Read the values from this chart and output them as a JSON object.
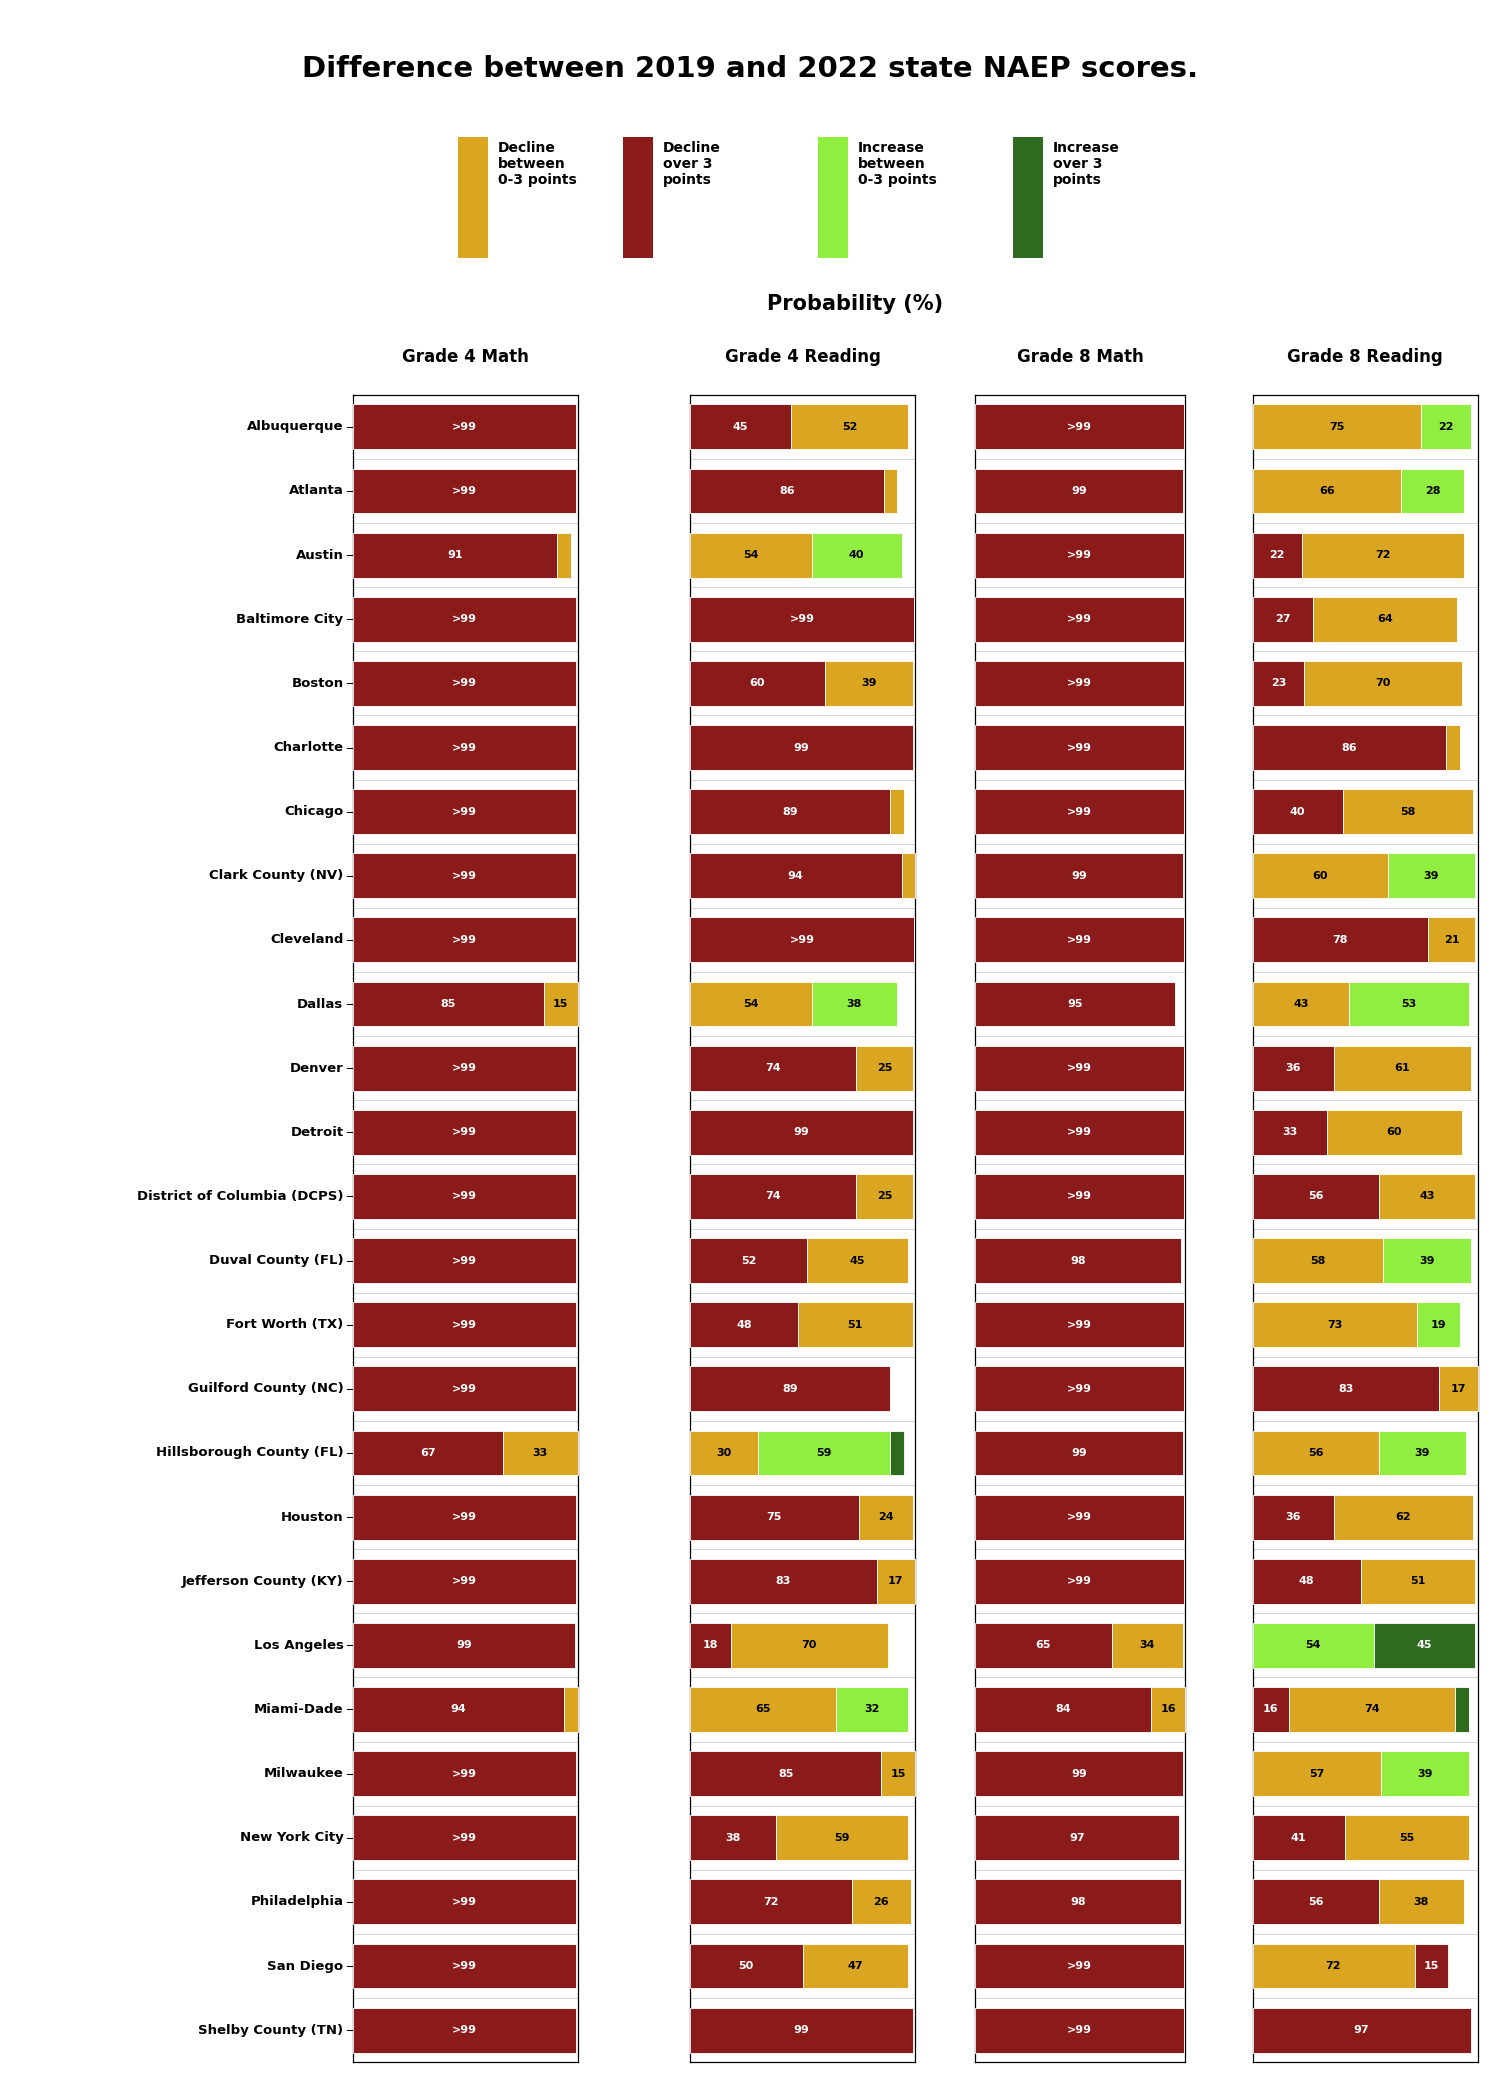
{
  "title": "Difference between 2019 and 2022 state NAEP scores.",
  "col_headers": [
    "Grade 4 Math",
    "Grade 4 Reading",
    "Grade 8 Math",
    "Grade 8 Reading"
  ],
  "cities": [
    "Albuquerque",
    "Atlanta",
    "Austin",
    "Baltimore City",
    "Boston",
    "Charlotte",
    "Chicago",
    "Clark County (NV)",
    "Cleveland",
    "Dallas",
    "Denver",
    "Detroit",
    "District of Columbia (DCPS)",
    "Duval County (FL)",
    "Fort Worth (TX)",
    "Guilford County (NC)",
    "Hillsborough County (FL)",
    "Houston",
    "Jefferson County (KY)",
    "Los Angeles",
    "Miami-Dade",
    "Milwaukee",
    "New York City",
    "Philadelphia",
    "San Diego",
    "Shelby County (TN)"
  ],
  "cmap": {
    "dark_red": "#8B1A1A",
    "gold": "#DAA520",
    "light_green": "#90EE40",
    "dark_green": "#2E6B1E"
  },
  "legend_items": [
    {
      "color": "#DAA520",
      "label": "Decline\nbetween\n0-3 points"
    },
    {
      "color": "#8B1A1A",
      "label": "Decline\nover 3\npoints"
    },
    {
      "color": "#90EE40",
      "label": "Increase\nbetween\n0-3 points"
    },
    {
      "color": "#2E6B1E",
      "label": "Increase\nover 3\npoints"
    }
  ],
  "data": {
    "Grade 4 Math": [
      [
        {
          "val": 99.5,
          "label": ">99",
          "color": "dark_red"
        }
      ],
      [
        {
          "val": 99.5,
          "label": ">99",
          "color": "dark_red"
        }
      ],
      [
        {
          "val": 91,
          "label": "91",
          "color": "dark_red"
        },
        {
          "val": 6,
          "label": "",
          "color": "gold"
        }
      ],
      [
        {
          "val": 99.5,
          "label": ">99",
          "color": "dark_red"
        }
      ],
      [
        {
          "val": 99.5,
          "label": ">99",
          "color": "dark_red"
        }
      ],
      [
        {
          "val": 99.5,
          "label": ">99",
          "color": "dark_red"
        }
      ],
      [
        {
          "val": 99.5,
          "label": ">99",
          "color": "dark_red"
        }
      ],
      [
        {
          "val": 99.5,
          "label": ">99",
          "color": "dark_red"
        }
      ],
      [
        {
          "val": 99.5,
          "label": ">99",
          "color": "dark_red"
        }
      ],
      [
        {
          "val": 85,
          "label": "85",
          "color": "dark_red"
        },
        {
          "val": 15,
          "label": "15",
          "color": "gold"
        }
      ],
      [
        {
          "val": 99.5,
          "label": ">99",
          "color": "dark_red"
        }
      ],
      [
        {
          "val": 99.5,
          "label": ">99",
          "color": "dark_red"
        }
      ],
      [
        {
          "val": 99.5,
          "label": ">99",
          "color": "dark_red"
        }
      ],
      [
        {
          "val": 99.5,
          "label": ">99",
          "color": "dark_red"
        }
      ],
      [
        {
          "val": 99.5,
          "label": ">99",
          "color": "dark_red"
        }
      ],
      [
        {
          "val": 99.5,
          "label": ">99",
          "color": "dark_red"
        }
      ],
      [
        {
          "val": 67,
          "label": "67",
          "color": "dark_red"
        },
        {
          "val": 33,
          "label": "33",
          "color": "gold"
        }
      ],
      [
        {
          "val": 99.5,
          "label": ">99",
          "color": "dark_red"
        }
      ],
      [
        {
          "val": 99.5,
          "label": ">99",
          "color": "dark_red"
        }
      ],
      [
        {
          "val": 99,
          "label": "99",
          "color": "dark_red"
        }
      ],
      [
        {
          "val": 94,
          "label": "94",
          "color": "dark_red"
        },
        {
          "val": 6,
          "label": "",
          "color": "gold"
        }
      ],
      [
        {
          "val": 99.5,
          "label": ">99",
          "color": "dark_red"
        }
      ],
      [
        {
          "val": 99.5,
          "label": ">99",
          "color": "dark_red"
        }
      ],
      [
        {
          "val": 99.5,
          "label": ">99",
          "color": "dark_red"
        }
      ],
      [
        {
          "val": 99.5,
          "label": ">99",
          "color": "dark_red"
        }
      ],
      [
        {
          "val": 99.5,
          "label": ">99",
          "color": "dark_red"
        }
      ]
    ],
    "Grade 4 Reading": [
      [
        {
          "val": 45,
          "label": "45",
          "color": "dark_red"
        },
        {
          "val": 52,
          "label": "52",
          "color": "gold"
        }
      ],
      [
        {
          "val": 86,
          "label": "86",
          "color": "dark_red"
        },
        {
          "val": 6,
          "label": "",
          "color": "gold"
        }
      ],
      [
        {
          "val": 54,
          "label": "54",
          "color": "gold"
        },
        {
          "val": 40,
          "label": "40",
          "color": "light_green"
        }
      ],
      [
        {
          "val": 99.5,
          "label": ">99",
          "color": "dark_red"
        }
      ],
      [
        {
          "val": 60,
          "label": "60",
          "color": "dark_red"
        },
        {
          "val": 39,
          "label": "39",
          "color": "gold"
        }
      ],
      [
        {
          "val": 99,
          "label": "99",
          "color": "dark_red"
        }
      ],
      [
        {
          "val": 89,
          "label": "89",
          "color": "dark_red"
        },
        {
          "val": 6,
          "label": "",
          "color": "gold"
        }
      ],
      [
        {
          "val": 94,
          "label": "94",
          "color": "dark_red"
        },
        {
          "val": 6,
          "label": "",
          "color": "gold"
        }
      ],
      [
        {
          "val": 99.5,
          "label": ">99",
          "color": "dark_red"
        }
      ],
      [
        {
          "val": 54,
          "label": "54",
          "color": "gold"
        },
        {
          "val": 38,
          "label": "38",
          "color": "light_green"
        }
      ],
      [
        {
          "val": 74,
          "label": "74",
          "color": "dark_red"
        },
        {
          "val": 25,
          "label": "25",
          "color": "gold"
        }
      ],
      [
        {
          "val": 99,
          "label": "99",
          "color": "dark_red"
        }
      ],
      [
        {
          "val": 74,
          "label": "74",
          "color": "dark_red"
        },
        {
          "val": 25,
          "label": "25",
          "color": "gold"
        }
      ],
      [
        {
          "val": 52,
          "label": "52",
          "color": "dark_red"
        },
        {
          "val": 45,
          "label": "45",
          "color": "gold"
        }
      ],
      [
        {
          "val": 48,
          "label": "48",
          "color": "dark_red"
        },
        {
          "val": 51,
          "label": "51",
          "color": "gold"
        }
      ],
      [
        {
          "val": 89,
          "label": "89",
          "color": "dark_red"
        }
      ],
      [
        {
          "val": 30,
          "label": "30",
          "color": "gold"
        },
        {
          "val": 59,
          "label": "59",
          "color": "light_green"
        },
        {
          "val": 6,
          "label": "",
          "color": "dark_green"
        }
      ],
      [
        {
          "val": 75,
          "label": "75",
          "color": "dark_red"
        },
        {
          "val": 24,
          "label": "24",
          "color": "gold"
        }
      ],
      [
        {
          "val": 83,
          "label": "83",
          "color": "dark_red"
        },
        {
          "val": 17,
          "label": "17",
          "color": "gold"
        }
      ],
      [
        {
          "val": 18,
          "label": "18",
          "color": "dark_red"
        },
        {
          "val": 70,
          "label": "70",
          "color": "gold"
        }
      ],
      [
        {
          "val": 65,
          "label": "65",
          "color": "gold"
        },
        {
          "val": 32,
          "label": "32",
          "color": "light_green"
        }
      ],
      [
        {
          "val": 85,
          "label": "85",
          "color": "dark_red"
        },
        {
          "val": 15,
          "label": "15",
          "color": "gold"
        }
      ],
      [
        {
          "val": 38,
          "label": "38",
          "color": "dark_red"
        },
        {
          "val": 59,
          "label": "59",
          "color": "gold"
        }
      ],
      [
        {
          "val": 72,
          "label": "72",
          "color": "dark_red"
        },
        {
          "val": 26,
          "label": "26",
          "color": "gold"
        }
      ],
      [
        {
          "val": 50,
          "label": "50",
          "color": "dark_red"
        },
        {
          "val": 47,
          "label": "47",
          "color": "gold"
        }
      ],
      [
        {
          "val": 99,
          "label": "99",
          "color": "dark_red"
        }
      ]
    ],
    "Grade 8 Math": [
      [
        {
          "val": 99.5,
          "label": ">99",
          "color": "dark_red"
        }
      ],
      [
        {
          "val": 99,
          "label": "99",
          "color": "dark_red"
        }
      ],
      [
        {
          "val": 99.5,
          "label": ">99",
          "color": "dark_red"
        }
      ],
      [
        {
          "val": 99.5,
          "label": ">99",
          "color": "dark_red"
        }
      ],
      [
        {
          "val": 99.5,
          "label": ">99",
          "color": "dark_red"
        }
      ],
      [
        {
          "val": 99.5,
          "label": ">99",
          "color": "dark_red"
        }
      ],
      [
        {
          "val": 99.5,
          "label": ">99",
          "color": "dark_red"
        }
      ],
      [
        {
          "val": 99,
          "label": "99",
          "color": "dark_red"
        }
      ],
      [
        {
          "val": 99.5,
          "label": ">99",
          "color": "dark_red"
        }
      ],
      [
        {
          "val": 95,
          "label": "95",
          "color": "dark_red"
        }
      ],
      [
        {
          "val": 99.5,
          "label": ">99",
          "color": "dark_red"
        }
      ],
      [
        {
          "val": 99.5,
          "label": ">99",
          "color": "dark_red"
        }
      ],
      [
        {
          "val": 99.5,
          "label": ">99",
          "color": "dark_red"
        }
      ],
      [
        {
          "val": 98,
          "label": "98",
          "color": "dark_red"
        }
      ],
      [
        {
          "val": 99.5,
          "label": ">99",
          "color": "dark_red"
        }
      ],
      [
        {
          "val": 99.5,
          "label": ">99",
          "color": "dark_red"
        }
      ],
      [
        {
          "val": 99,
          "label": "99",
          "color": "dark_red"
        }
      ],
      [
        {
          "val": 99.5,
          "label": ">99",
          "color": "dark_red"
        }
      ],
      [
        {
          "val": 99.5,
          "label": ">99",
          "color": "dark_red"
        }
      ],
      [
        {
          "val": 65,
          "label": "65",
          "color": "dark_red"
        },
        {
          "val": 34,
          "label": "34",
          "color": "gold"
        }
      ],
      [
        {
          "val": 84,
          "label": "84",
          "color": "dark_red"
        },
        {
          "val": 16,
          "label": "16",
          "color": "gold"
        }
      ],
      [
        {
          "val": 99,
          "label": "99",
          "color": "dark_red"
        }
      ],
      [
        {
          "val": 97,
          "label": "97",
          "color": "dark_red"
        }
      ],
      [
        {
          "val": 98,
          "label": "98",
          "color": "dark_red"
        }
      ],
      [
        {
          "val": 99.5,
          "label": ">99",
          "color": "dark_red"
        }
      ],
      [
        {
          "val": 99.5,
          "label": ">99",
          "color": "dark_red"
        }
      ]
    ],
    "Grade 8 Reading": [
      [
        {
          "val": 75,
          "label": "75",
          "color": "gold"
        },
        {
          "val": 22,
          "label": "22",
          "color": "light_green"
        }
      ],
      [
        {
          "val": 66,
          "label": "66",
          "color": "gold"
        },
        {
          "val": 28,
          "label": "28",
          "color": "light_green"
        }
      ],
      [
        {
          "val": 22,
          "label": "22",
          "color": "dark_red"
        },
        {
          "val": 72,
          "label": "72",
          "color": "gold"
        }
      ],
      [
        {
          "val": 27,
          "label": "27",
          "color": "dark_red"
        },
        {
          "val": 64,
          "label": "64",
          "color": "gold"
        }
      ],
      [
        {
          "val": 23,
          "label": "23",
          "color": "dark_red"
        },
        {
          "val": 70,
          "label": "70",
          "color": "gold"
        }
      ],
      [
        {
          "val": 86,
          "label": "86",
          "color": "dark_red"
        },
        {
          "val": 6,
          "label": "",
          "color": "gold"
        }
      ],
      [
        {
          "val": 40,
          "label": "40",
          "color": "dark_red"
        },
        {
          "val": 58,
          "label": "58",
          "color": "gold"
        }
      ],
      [
        {
          "val": 60,
          "label": "60",
          "color": "gold"
        },
        {
          "val": 39,
          "label": "39",
          "color": "light_green"
        }
      ],
      [
        {
          "val": 78,
          "label": "78",
          "color": "dark_red"
        },
        {
          "val": 21,
          "label": "21",
          "color": "gold"
        }
      ],
      [
        {
          "val": 43,
          "label": "43",
          "color": "gold"
        },
        {
          "val": 53,
          "label": "53",
          "color": "light_green"
        }
      ],
      [
        {
          "val": 36,
          "label": "36",
          "color": "dark_red"
        },
        {
          "val": 61,
          "label": "61",
          "color": "gold"
        }
      ],
      [
        {
          "val": 33,
          "label": "33",
          "color": "dark_red"
        },
        {
          "val": 60,
          "label": "60",
          "color": "gold"
        }
      ],
      [
        {
          "val": 56,
          "label": "56",
          "color": "dark_red"
        },
        {
          "val": 43,
          "label": "43",
          "color": "gold"
        }
      ],
      [
        {
          "val": 58,
          "label": "58",
          "color": "gold"
        },
        {
          "val": 39,
          "label": "39",
          "color": "light_green"
        }
      ],
      [
        {
          "val": 73,
          "label": "73",
          "color": "gold"
        },
        {
          "val": 19,
          "label": "19",
          "color": "light_green"
        }
      ],
      [
        {
          "val": 83,
          "label": "83",
          "color": "dark_red"
        },
        {
          "val": 17,
          "label": "17",
          "color": "gold"
        }
      ],
      [
        {
          "val": 56,
          "label": "56",
          "color": "gold"
        },
        {
          "val": 39,
          "label": "39",
          "color": "light_green"
        }
      ],
      [
        {
          "val": 36,
          "label": "36",
          "color": "dark_red"
        },
        {
          "val": 62,
          "label": "62",
          "color": "gold"
        }
      ],
      [
        {
          "val": 48,
          "label": "48",
          "color": "dark_red"
        },
        {
          "val": 51,
          "label": "51",
          "color": "gold"
        }
      ],
      [
        {
          "val": 54,
          "label": "54",
          "color": "light_green"
        },
        {
          "val": 45,
          "label": "45",
          "color": "dark_green"
        }
      ],
      [
        {
          "val": 16,
          "label": "16",
          "color": "dark_red"
        },
        {
          "val": 74,
          "label": "74",
          "color": "gold"
        },
        {
          "val": 6,
          "label": "",
          "color": "dark_green"
        }
      ],
      [
        {
          "val": 57,
          "label": "57",
          "color": "gold"
        },
        {
          "val": 39,
          "label": "39",
          "color": "light_green"
        }
      ],
      [
        {
          "val": 41,
          "label": "41",
          "color": "dark_red"
        },
        {
          "val": 55,
          "label": "55",
          "color": "gold"
        }
      ],
      [
        {
          "val": 56,
          "label": "56",
          "color": "dark_red"
        },
        {
          "val": 38,
          "label": "38",
          "color": "gold"
        }
      ],
      [
        {
          "val": 72,
          "label": "72",
          "color": "gold"
        },
        {
          "val": 15,
          "label": "15",
          "color": "dark_red"
        }
      ],
      [
        {
          "val": 97,
          "label": "97",
          "color": "dark_red"
        }
      ]
    ]
  }
}
